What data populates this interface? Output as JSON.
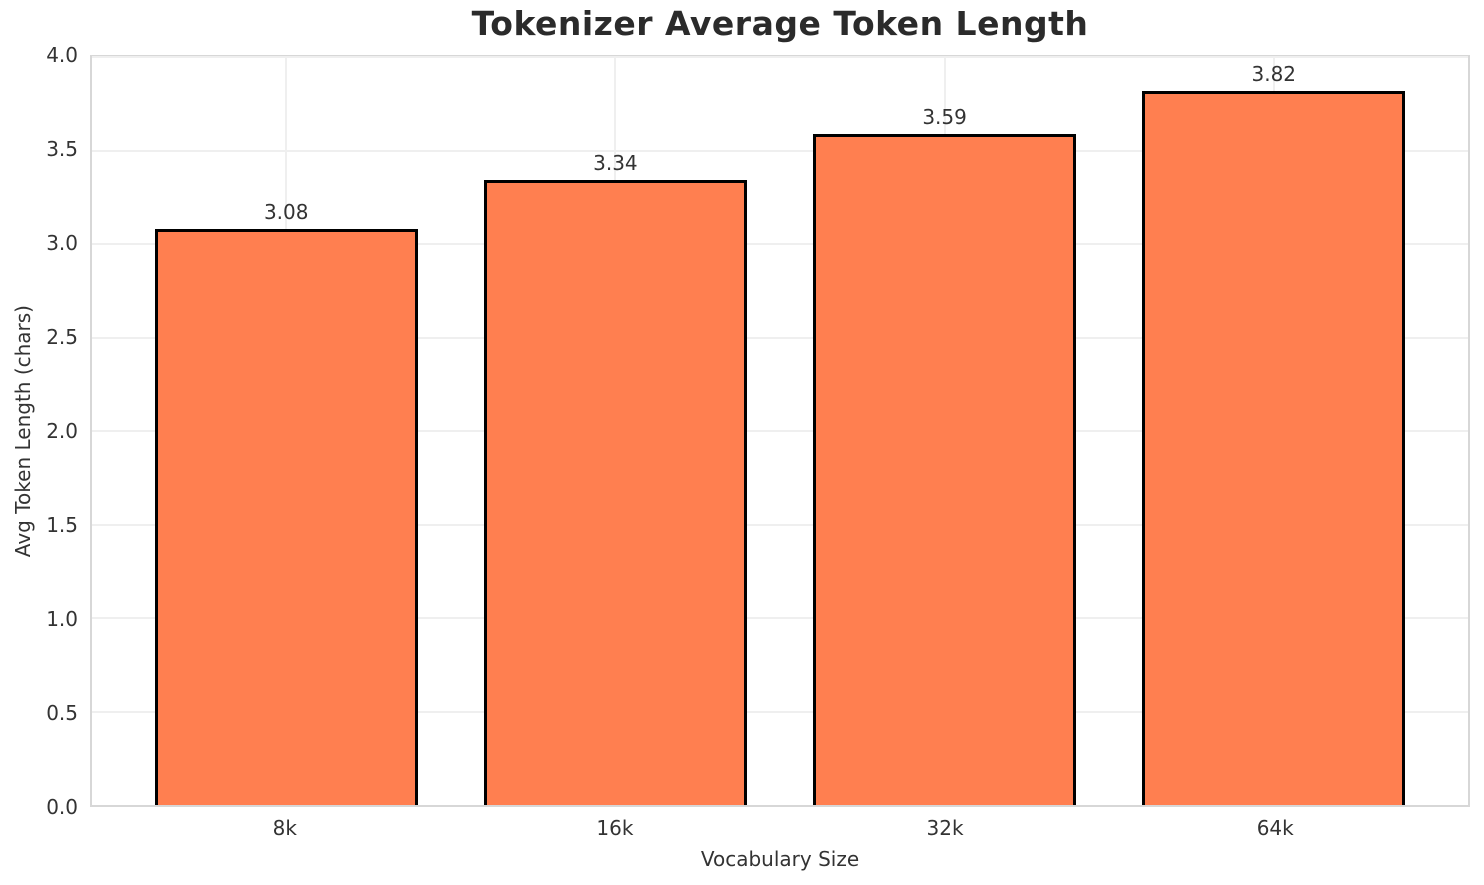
{
  "page": {
    "background_color": "#ffffff"
  },
  "chart_data": {
    "type": "bar",
    "title": "Tokenizer Average Token Length",
    "xlabel": "Vocabulary Size",
    "ylabel": "Avg Token Length (chars)",
    "categories": [
      "8k",
      "16k",
      "32k",
      "64k"
    ],
    "values": [
      3.08,
      3.34,
      3.59,
      3.82
    ],
    "bar_labels": [
      "3.08",
      "3.34",
      "3.59",
      "3.82"
    ],
    "ylim": [
      0,
      4
    ],
    "yticks": [
      {
        "value": 0.0,
        "label": "0.0"
      },
      {
        "value": 0.5,
        "label": "0.5"
      },
      {
        "value": 1.0,
        "label": "1.0"
      },
      {
        "value": 1.5,
        "label": "1.5"
      },
      {
        "value": 2.0,
        "label": "2.0"
      },
      {
        "value": 2.5,
        "label": "2.5"
      },
      {
        "value": 3.0,
        "label": "3.0"
      },
      {
        "value": 3.5,
        "label": "3.5"
      },
      {
        "value": 4.0,
        "label": "4.0"
      }
    ],
    "grid": true,
    "legend_position": "none",
    "colors": {
      "bar_fill": "#FF7F50",
      "bar_edge": "#000000",
      "grid": "#efefef",
      "spine": "#d7d7d7",
      "title_text": "#2b2b2b",
      "tick_text": "#333333"
    }
  }
}
